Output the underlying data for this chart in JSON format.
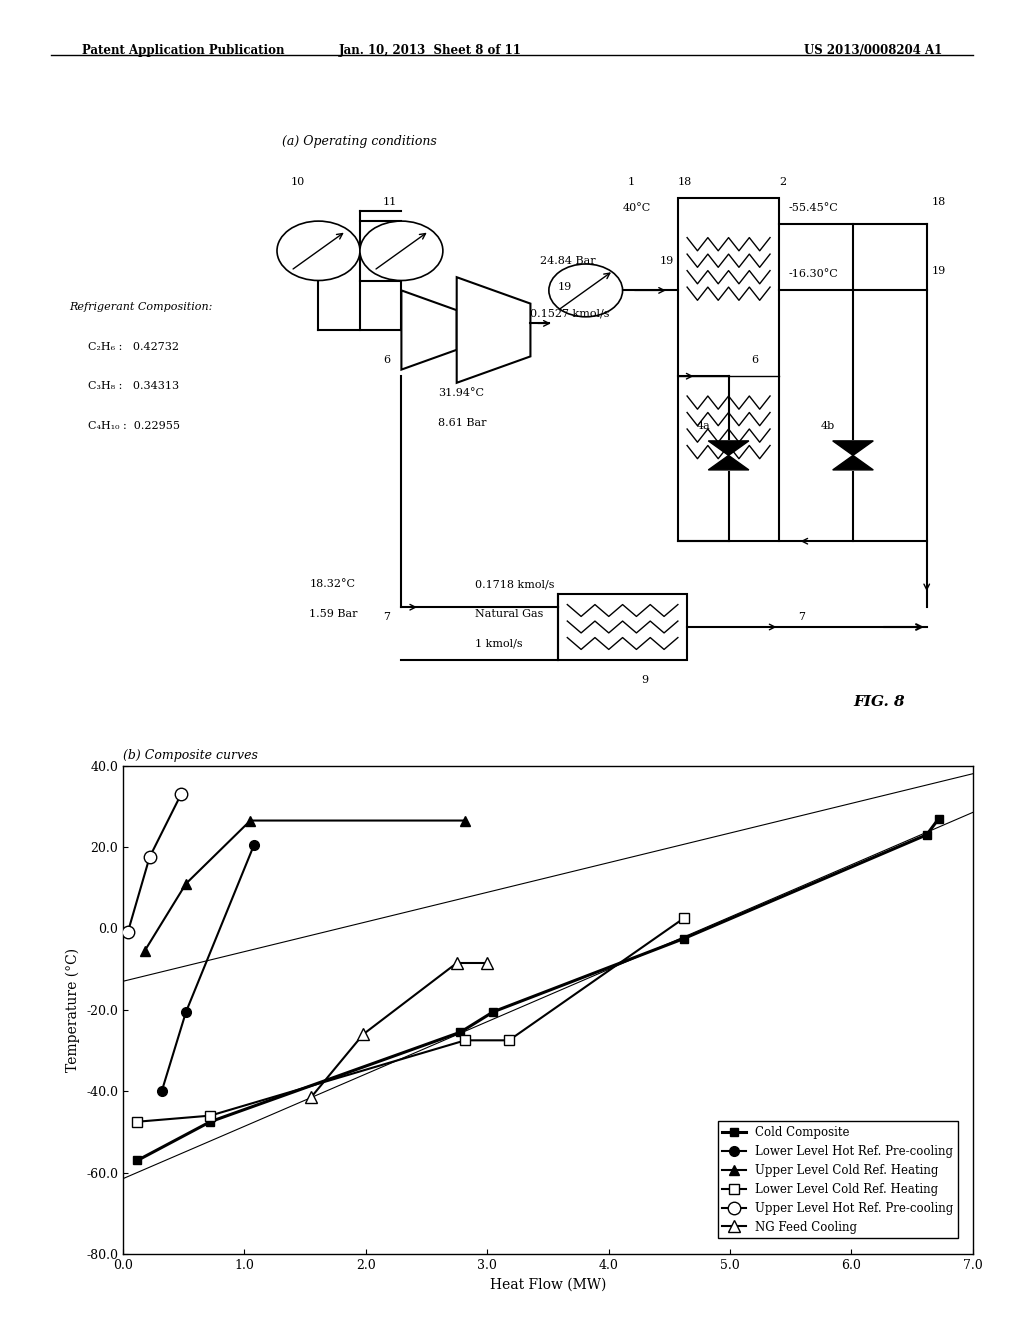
{
  "header_left": "Patent Application Publication",
  "header_mid": "Jan. 10, 2013  Sheet 8 of 11",
  "header_right": "US 2013/0008204 A1",
  "title_diagram": "(a) Operating conditions",
  "title_chart": "(b) Composite curves",
  "xlabel": "Heat Flow (MW)",
  "ylabel": "Temperature (°C)",
  "xlim": [
    0.0,
    7.0
  ],
  "ylim": [
    -80.0,
    40.0
  ],
  "xticks": [
    0.0,
    1.0,
    2.0,
    3.0,
    4.0,
    5.0,
    6.0,
    7.0
  ],
  "yticks": [
    -80.0,
    -60.0,
    -40.0,
    -20.0,
    0.0,
    20.0,
    40.0
  ],
  "fig_label": "FIG. 8",
  "cold_composite": {
    "x": [
      0.12,
      0.72,
      2.78,
      3.05,
      4.62,
      6.62,
      6.72
    ],
    "y": [
      -57.0,
      -47.5,
      -25.5,
      -20.5,
      -2.5,
      23.0,
      27.0
    ],
    "label": "Cold Composite"
  },
  "lower_hot_precool": {
    "x": [
      0.32,
      0.52,
      1.08
    ],
    "y": [
      -40.0,
      -20.5,
      20.5
    ],
    "label": "Lower Level Hot Ref. Pre-cooling"
  },
  "upper_cold_heat": {
    "x": [
      0.18,
      0.52,
      1.05,
      2.82
    ],
    "y": [
      -5.5,
      11.0,
      26.5,
      26.5
    ],
    "label": "Upper Level Cold Ref. Heating"
  },
  "lower_cold_heat": {
    "x": [
      0.12,
      0.72,
      2.82,
      3.18,
      4.62
    ],
    "y": [
      -47.5,
      -46.0,
      -27.5,
      -27.5,
      2.5
    ],
    "label": "Lower Level Cold Ref. Heating"
  },
  "upper_hot_precool": {
    "x": [
      0.04,
      0.22,
      0.48
    ],
    "y": [
      -1.0,
      17.5,
      33.0
    ],
    "label": "Upper Level Hot Ref. Pre-cooling"
  },
  "ng_feed_cool": {
    "x": [
      1.55,
      1.98,
      2.75,
      3.0
    ],
    "y": [
      -41.5,
      -26.0,
      -8.5,
      -8.5
    ],
    "label": "NG Feed Cooling"
  },
  "upper_straight_line": {
    "x": [
      0.0,
      7.0
    ],
    "y": [
      -13.0,
      38.0
    ]
  },
  "lower_straight_line": {
    "x": [
      0.0,
      7.0
    ],
    "y": [
      -61.5,
      28.5
    ]
  }
}
